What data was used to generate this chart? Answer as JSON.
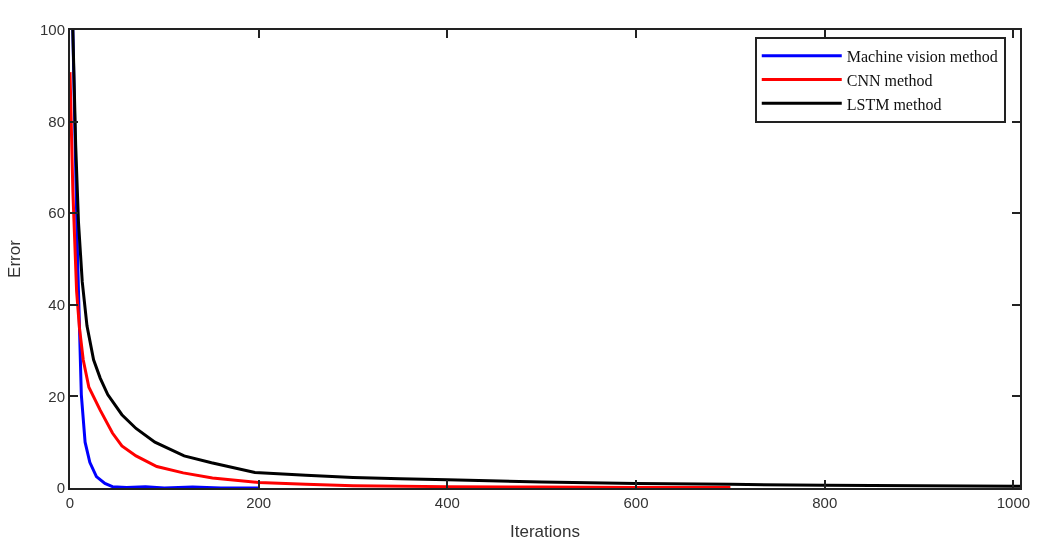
{
  "chart_data": {
    "type": "line",
    "xlabel": "Iterations",
    "ylabel": "Error",
    "xlim": [
      0,
      1007
    ],
    "ylim": [
      0,
      100
    ],
    "xticks": [
      0,
      200,
      400,
      600,
      800,
      1000
    ],
    "yticks": [
      0,
      20,
      40,
      60,
      80,
      100
    ],
    "legend": "top right",
    "line_style": "solid",
    "marker": "none",
    "series": [
      {
        "name": "Machine vision method",
        "color": "#0000ff",
        "x": [
          3,
          5,
          8,
          12,
          16,
          21,
          28,
          37,
          45,
          60,
          80,
          100,
          130,
          160,
          200
        ],
        "values": [
          100,
          80,
          50.4,
          20.4,
          10,
          5.6,
          2.5,
          1,
          0.3,
          0.1,
          0.3,
          0,
          0.2,
          0,
          0
        ]
      },
      {
        "name": "CNN method",
        "color": "#ff0000",
        "x": [
          0,
          3,
          7,
          10,
          14,
          20,
          32,
          45,
          55,
          70,
          92,
          120,
          151,
          200,
          250,
          300,
          400,
          500,
          600,
          700
        ],
        "values": [
          90.8,
          65,
          43,
          35,
          28,
          22,
          17,
          12,
          9.2,
          7,
          4.7,
          3.3,
          2.2,
          1.2,
          0.8,
          0.5,
          0.3,
          0.2,
          0.1,
          0.1
        ]
      },
      {
        "name": "LSTM method",
        "color": "#000000",
        "x": [
          3,
          6,
          9,
          13,
          18,
          25,
          32,
          40,
          55,
          70,
          90,
          121,
          150,
          196,
          250,
          300,
          350,
          400,
          500,
          600,
          700,
          800,
          900,
          1007
        ],
        "values": [
          100,
          75,
          58,
          45,
          35.4,
          28,
          24,
          20.4,
          16,
          13,
          10,
          7,
          5.5,
          3.4,
          2.8,
          2.3,
          2,
          1.8,
          1.3,
          1,
          0.8,
          0.6,
          0.5,
          0.4
        ]
      }
    ]
  }
}
